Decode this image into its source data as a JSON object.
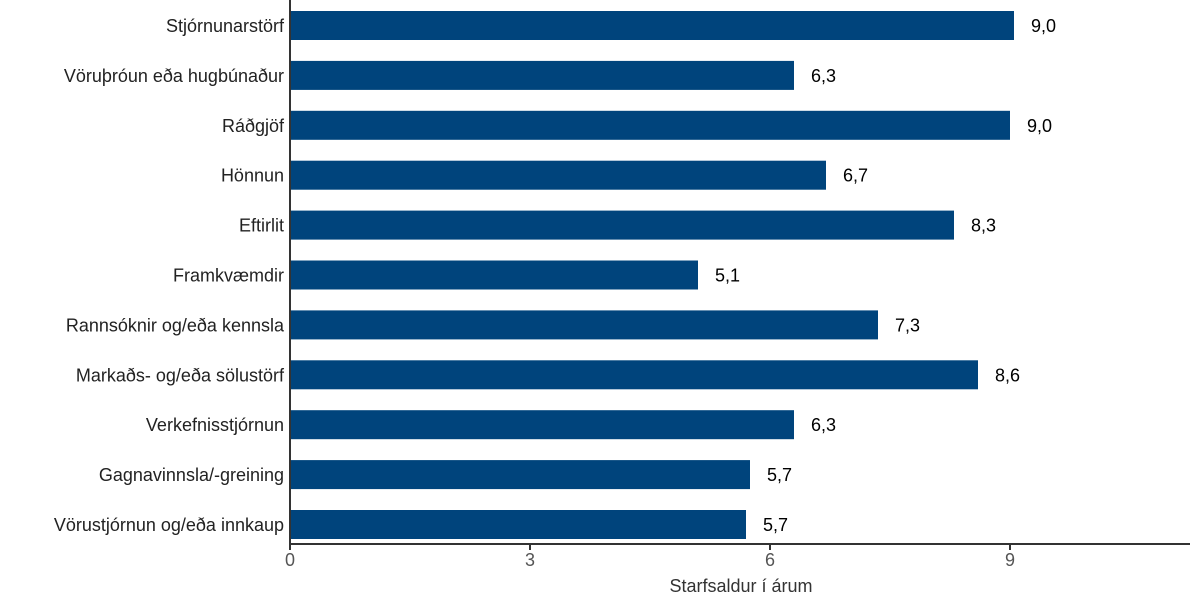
{
  "chart_data": {
    "type": "bar",
    "orientation": "horizontal",
    "categories": [
      "Stjórnunarstörf",
      "Vöruþróun eða hugbúnaður",
      "Ráðgjöf",
      "Hönnun",
      "Eftirlit",
      "Framkvæmdir",
      "Rannsóknir og/eða kennsla",
      "Markaðs- og/eða sölustörf",
      "Verkefnisstjórnun",
      "Gagnavinnsla/-greining",
      "Vörustjórnun og/eða innkaup"
    ],
    "values": [
      9.05,
      6.3,
      9.0,
      6.7,
      8.3,
      5.1,
      7.35,
      8.6,
      6.3,
      5.75,
      5.7
    ],
    "value_labels": [
      "9,0",
      "6,3",
      "9,0",
      "6,7",
      "8,3",
      "5,1",
      "7,3",
      "8,6",
      "6,3",
      "5,7",
      "5,7"
    ],
    "xlabel": "Starfsaldur í árum",
    "ylabel": "",
    "xlim": [
      0,
      11.25
    ],
    "xticks": [
      0,
      3,
      6,
      9
    ],
    "xtick_labels": [
      "0",
      "3",
      "6",
      "9"
    ],
    "grid": false,
    "bar_color": "#00447c",
    "axis_color": "#333333"
  }
}
